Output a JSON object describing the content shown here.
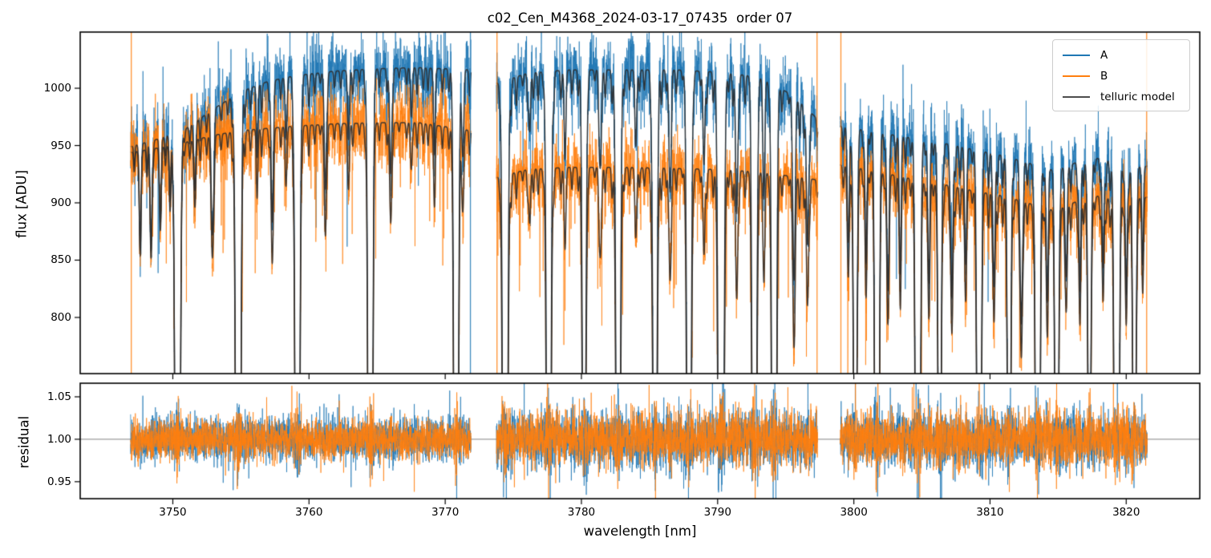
{
  "figure": {
    "title": "c02_Cen_M4368_2024-03-17_07435  order 07",
    "background": "#ffffff"
  },
  "chart_data": {
    "type": "line",
    "title": "c02_Cen_M4368_2024-03-17_07435  order 07",
    "xlabel": "wavelength [nm]",
    "xlim": [
      3743.2,
      3825.4
    ],
    "xticks": [
      3750,
      3760,
      3770,
      3780,
      3790,
      3800,
      3810,
      3820
    ],
    "xtick_labels": [
      "3750",
      "3760",
      "3770",
      "3780",
      "3790",
      "3800",
      "3810",
      "3820"
    ],
    "panels": [
      {
        "id": "flux",
        "ylabel": "flux [ADU]",
        "ylim": [
          751,
          1049
        ],
        "yticks": [
          800,
          850,
          900,
          950,
          1000
        ],
        "ytick_labels": [
          "800",
          "850",
          "900",
          "950",
          "1000"
        ],
        "hline": null
      },
      {
        "id": "residual",
        "ylabel": "residual",
        "ylim": [
          0.93,
          1.066
        ],
        "yticks": [
          0.95,
          1.0,
          1.05
        ],
        "ytick_labels": [
          "0.95",
          "1.00",
          "1.05"
        ],
        "hline": 1.0,
        "hline_color": "#808080"
      }
    ],
    "legend": [
      {
        "label": "A",
        "color": "#1f77b4"
      },
      {
        "label": "B",
        "color": "#ff7f0e"
      },
      {
        "label": "telluric model",
        "color": "#4d4d4d"
      }
    ],
    "colors": {
      "A": "#1f77b4",
      "B": "#ff7f0e",
      "telluric": "#2d2d2d"
    },
    "noise": {
      "seed": 11,
      "flux_frac_A": 0.015,
      "flux_frac_B": 0.016,
      "residual_A": 0.0145,
      "residual_B": 0.0135
    },
    "segments": [
      {
        "range": [
          3746.9,
          3771.9
        ],
        "continuum_A": [
          [
            3746.9,
            949
          ],
          [
            3749,
            956
          ],
          [
            3751,
            965
          ],
          [
            3753,
            982
          ],
          [
            3755,
            997
          ],
          [
            3757,
            1006
          ],
          [
            3759,
            1011
          ],
          [
            3762,
            1015
          ],
          [
            3765,
            1017
          ],
          [
            3768,
            1018
          ],
          [
            3771.9,
            1016
          ]
        ],
        "continuum_B": [
          [
            3746.9,
            944
          ],
          [
            3749,
            948
          ],
          [
            3751,
            953
          ],
          [
            3753,
            959
          ],
          [
            3755,
            963
          ],
          [
            3757,
            965
          ],
          [
            3759,
            967
          ],
          [
            3762,
            969
          ],
          [
            3765,
            970
          ],
          [
            3768,
            970
          ],
          [
            3771.9,
            963
          ]
        ],
        "deep_lines": [
          [
            3750.35,
            0.97,
            0.13
          ],
          [
            3754.8,
            0.97,
            0.13
          ],
          [
            3759.15,
            0.95,
            0.12
          ],
          [
            3764.5,
            0.95,
            0.12
          ],
          [
            3770.8,
            0.9,
            0.12
          ]
        ],
        "medium_lines": [
          [
            3747.6,
            0.08,
            0.07
          ],
          [
            3748.4,
            0.1,
            0.07
          ],
          [
            3749.1,
            0.07,
            0.06
          ],
          [
            3749.8,
            0.06,
            0.06
          ],
          [
            3751.6,
            0.05,
            0.07
          ],
          [
            3752.9,
            0.11,
            0.09
          ],
          [
            3756.2,
            0.04,
            0.06
          ],
          [
            3757.3,
            0.12,
            0.08
          ],
          [
            3758.3,
            0.05,
            0.06
          ],
          [
            3761.2,
            0.1,
            0.08
          ],
          [
            3762.9,
            0.05,
            0.07
          ],
          [
            3766.0,
            0.09,
            0.08
          ],
          [
            3767.5,
            0.04,
            0.06
          ],
          [
            3769.2,
            0.05,
            0.07
          ],
          [
            3771.3,
            0.07,
            0.07
          ]
        ],
        "notches": {
          "spacing": 0.45,
          "depth": [
            0.008,
            0.028
          ],
          "sigma": 0.05
        },
        "residual_noise_scale": 0.85
      },
      {
        "range": [
          3773.75,
          3797.35
        ],
        "continuum_A": [
          [
            3773.75,
            1004
          ],
          [
            3776,
            1013
          ],
          [
            3779,
            1016
          ],
          [
            3783,
            1016
          ],
          [
            3787,
            1016
          ],
          [
            3790,
            1014
          ],
          [
            3793,
            1010
          ],
          [
            3795.5,
            994
          ],
          [
            3797.35,
            973
          ]
        ],
        "continuum_B": [
          [
            3773.75,
            922
          ],
          [
            3776,
            929
          ],
          [
            3779,
            931
          ],
          [
            3783,
            931
          ],
          [
            3787,
            930
          ],
          [
            3790,
            929
          ],
          [
            3793,
            927
          ],
          [
            3795.5,
            923
          ],
          [
            3797.35,
            920
          ]
        ],
        "deep_lines": [
          [
            3774.4,
            0.97,
            0.13
          ],
          [
            3777.6,
            0.85,
            0.12
          ],
          [
            3780.2,
            0.5,
            0.11
          ],
          [
            3782.7,
            0.75,
            0.12
          ],
          [
            3785.4,
            0.6,
            0.12
          ],
          [
            3787.9,
            0.75,
            0.12
          ],
          [
            3790.25,
            1.0,
            0.14
          ],
          [
            3792.7,
            0.8,
            0.12
          ],
          [
            3794.15,
            0.95,
            0.12
          ]
        ],
        "medium_lines": [
          [
            3776.2,
            0.05,
            0.07
          ],
          [
            3778.8,
            0.06,
            0.07
          ],
          [
            3781.4,
            0.08,
            0.08
          ],
          [
            3784.0,
            0.06,
            0.07
          ],
          [
            3786.5,
            0.1,
            0.08
          ],
          [
            3789.0,
            0.08,
            0.07
          ],
          [
            3791.4,
            0.12,
            0.08
          ],
          [
            3793.4,
            0.1,
            0.07
          ],
          [
            3795.6,
            0.15,
            0.09
          ],
          [
            3796.6,
            0.12,
            0.08
          ]
        ],
        "notches": {
          "spacing": 0.42,
          "depth": [
            0.008,
            0.03
          ],
          "sigma": 0.05
        },
        "residual_noise_scale": 1.1
      },
      {
        "range": [
          3799.0,
          3821.55
        ],
        "continuum_A": [
          [
            3799.0,
            967
          ],
          [
            3801,
            963
          ],
          [
            3803,
            959
          ],
          [
            3805,
            955
          ],
          [
            3807,
            951
          ],
          [
            3809,
            946
          ],
          [
            3811,
            941
          ],
          [
            3813,
            934
          ],
          [
            3814.8,
            928
          ],
          [
            3816.5,
            936
          ],
          [
            3818,
            939
          ],
          [
            3819.5,
            934
          ],
          [
            3820.5,
            931
          ],
          [
            3821.55,
            932
          ]
        ],
        "continuum_B": [
          [
            3799.0,
            933
          ],
          [
            3801,
            929
          ],
          [
            3803,
            924
          ],
          [
            3805,
            919
          ],
          [
            3807,
            915
          ],
          [
            3809,
            910
          ],
          [
            3811,
            906
          ],
          [
            3813,
            899
          ],
          [
            3814.8,
            893
          ],
          [
            3816.5,
            902
          ],
          [
            3818,
            906
          ],
          [
            3819.5,
            901
          ],
          [
            3820.5,
            903
          ],
          [
            3821.55,
            905
          ]
        ],
        "deep_lines": [
          [
            3800.1,
            0.5,
            0.1
          ],
          [
            3801.7,
            0.9,
            0.11
          ],
          [
            3804.7,
            1.0,
            0.12
          ],
          [
            3806.3,
            0.45,
            0.1
          ],
          [
            3809.2,
            0.8,
            0.11
          ],
          [
            3811.4,
            0.5,
            0.1
          ],
          [
            3813.5,
            0.9,
            0.11
          ],
          [
            3814.9,
            0.6,
            0.1
          ],
          [
            3817.3,
            0.35,
            0.1
          ],
          [
            3819.3,
            1.0,
            0.12
          ],
          [
            3820.6,
            0.4,
            0.1
          ]
        ],
        "medium_lines": [
          [
            3799.6,
            0.1,
            0.07
          ],
          [
            3800.9,
            0.12,
            0.07
          ],
          [
            3802.5,
            0.14,
            0.08
          ],
          [
            3803.4,
            0.1,
            0.07
          ],
          [
            3805.5,
            0.12,
            0.07
          ],
          [
            3807.2,
            0.14,
            0.08
          ],
          [
            3808.2,
            0.1,
            0.07
          ],
          [
            3810.3,
            0.12,
            0.07
          ],
          [
            3812.3,
            0.15,
            0.08
          ],
          [
            3814.2,
            0.12,
            0.07
          ],
          [
            3815.6,
            0.1,
            0.07
          ],
          [
            3816.6,
            0.12,
            0.07
          ],
          [
            3818.3,
            0.1,
            0.07
          ],
          [
            3820.0,
            0.12,
            0.07
          ],
          [
            3821.2,
            0.08,
            0.06
          ]
        ],
        "notches": {
          "spacing": 0.38,
          "depth": [
            0.01,
            0.035
          ],
          "sigma": 0.05
        },
        "residual_noise_scale": 1.1
      }
    ],
    "spikes": [
      {
        "x": 3746.95,
        "series": "B"
      },
      {
        "x": 3771.85,
        "series": "A"
      },
      {
        "x": 3773.8,
        "series": "B"
      },
      {
        "x": 3797.3,
        "series": "B"
      },
      {
        "x": 3799.05,
        "series": "B"
      },
      {
        "x": 3821.5,
        "series": "B"
      }
    ]
  }
}
